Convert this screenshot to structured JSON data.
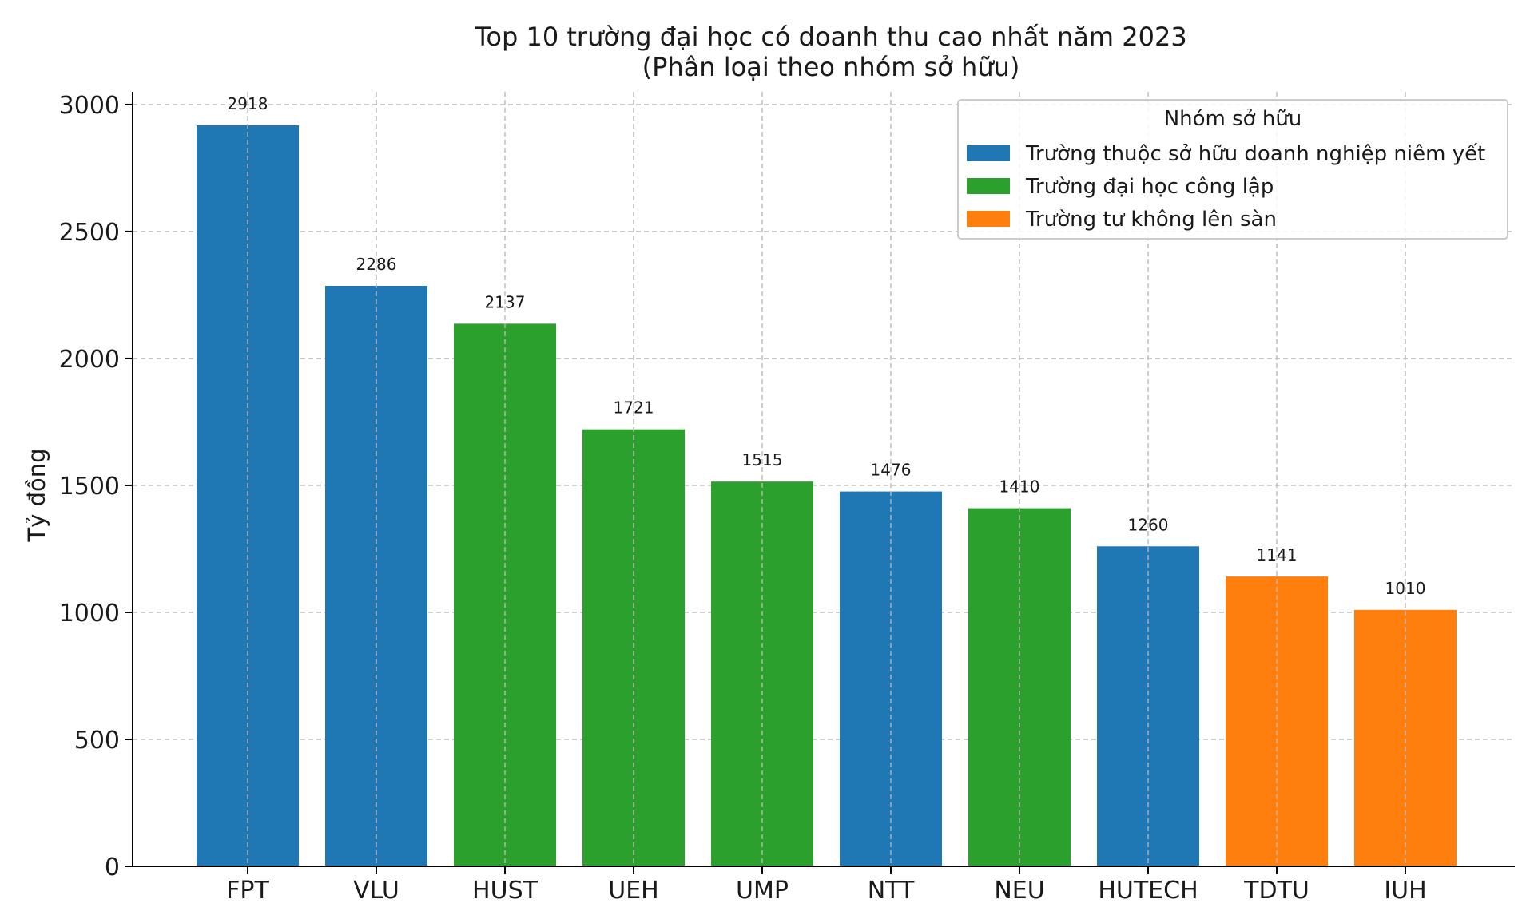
{
  "chart_data": {
    "type": "bar",
    "title": "Top 10 trường đại học có doanh thu cao nhất năm 2023",
    "subtitle": "(Phân loại theo nhóm sở hữu)",
    "xlabel": "",
    "ylabel": "Tỷ đồng",
    "ylim": [
      0,
      3050
    ],
    "y_ticks": [
      0,
      500,
      1000,
      1500,
      2000,
      2500,
      3000
    ],
    "grid": true,
    "legend_position": "top-right",
    "legend_title": "Nhóm sở hữu",
    "groups": [
      {
        "name": "Trường thuộc sở hữu doanh nghiệp niêm yết",
        "color": "#1f77b4"
      },
      {
        "name": "Trường đại học công lập",
        "color": "#2ca02c"
      },
      {
        "name": "Trường tư không lên sàn",
        "color": "#ff7f0e"
      }
    ],
    "categories": [
      "FPT",
      "VLU",
      "HUST",
      "UEH",
      "UMP",
      "NTT",
      "NEU",
      "HUTECH",
      "TDTU",
      "IUH"
    ],
    "values": [
      2918,
      2286,
      2137,
      1721,
      1515,
      1476,
      1410,
      1260,
      1141,
      1010
    ],
    "value_labels": [
      "2918",
      "2286",
      "2137",
      "1721",
      "1515",
      "1476",
      "1410",
      "1260",
      "1141",
      "1010"
    ],
    "bar_groups": [
      0,
      0,
      1,
      1,
      1,
      0,
      1,
      0,
      2,
      2
    ]
  }
}
